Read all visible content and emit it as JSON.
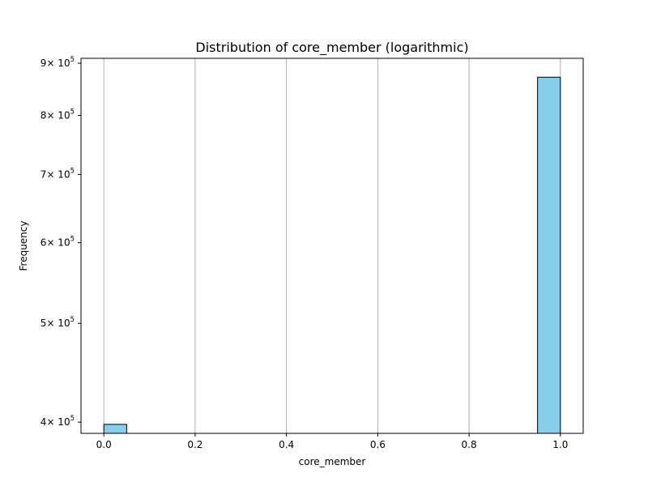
{
  "chart_data": {
    "type": "bar",
    "title": "Distribution of core_member (logarithmic)",
    "xlabel": "core_member",
    "ylabel": "Frequency",
    "xlim": [
      -0.05,
      1.05
    ],
    "ylim": [
      390000,
      910000
    ],
    "y_scale": "log",
    "grid": "x-only",
    "x_ticks": [
      {
        "value": 0.0,
        "label": "0.0"
      },
      {
        "value": 0.2,
        "label": "0.2"
      },
      {
        "value": 0.4,
        "label": "0.4"
      },
      {
        "value": 0.6,
        "label": "0.6"
      },
      {
        "value": 0.8,
        "label": "0.8"
      },
      {
        "value": 1.0,
        "label": "1.0"
      }
    ],
    "y_ticks": [
      {
        "value": 400000,
        "mantissa": "4",
        "base": "× 10",
        "exponent": "5"
      },
      {
        "value": 500000,
        "mantissa": "5",
        "base": "× 10",
        "exponent": "5"
      },
      {
        "value": 600000,
        "mantissa": "6",
        "base": "× 10",
        "exponent": "5"
      },
      {
        "value": 700000,
        "mantissa": "7",
        "base": "× 10",
        "exponent": "5"
      },
      {
        "value": 800000,
        "mantissa": "8",
        "base": "× 10",
        "exponent": "5"
      },
      {
        "value": 900000,
        "mantissa": "9",
        "base": "× 10",
        "exponent": "5"
      }
    ],
    "bins": [
      {
        "x0": 0.0,
        "x1": 0.05,
        "count": 398000
      },
      {
        "x0": 0.95,
        "x1": 1.0,
        "count": 872000
      }
    ],
    "colors": {
      "bar_fill": "#87ceeb",
      "bar_edge": "#000000",
      "grid": "#b0b0b0",
      "axis": "#000000"
    }
  }
}
